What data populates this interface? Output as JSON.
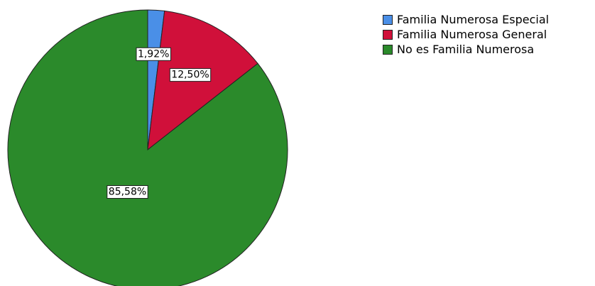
{
  "chart_data": {
    "type": "pie",
    "title": "",
    "start_angle_deg": 0,
    "direction": "clockwise",
    "slices": [
      {
        "label": "Familia Numerosa Especial",
        "value": 1.92,
        "display": "1,92%",
        "color": "#4a8fe7"
      },
      {
        "label": "Familia Numerosa General",
        "value": 12.5,
        "display": "12,50%",
        "color": "#d0103a"
      },
      {
        "label": "No es Familia Numerosa",
        "value": 85.58,
        "display": "85,58%",
        "color": "#2b8a2b"
      }
    ],
    "legend_position": "top-right"
  }
}
